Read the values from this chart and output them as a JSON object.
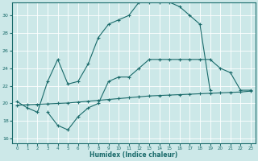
{
  "xlabel": "Humidex (Indice chaleur)",
  "bg_color": "#cce8e8",
  "line_color": "#1a6b6b",
  "grid_color": "#ffffff",
  "xlim": [
    -0.5,
    23.5
  ],
  "ylim": [
    15.5,
    31.5
  ],
  "xticks": [
    0,
    1,
    2,
    3,
    4,
    5,
    6,
    7,
    8,
    9,
    10,
    11,
    12,
    13,
    14,
    15,
    16,
    17,
    18,
    19,
    20,
    21,
    22,
    23
  ],
  "yticks": [
    16,
    18,
    20,
    22,
    24,
    26,
    28,
    30
  ],
  "line1_x": [
    0,
    1,
    2,
    3,
    4,
    5,
    6,
    7,
    8,
    9,
    10,
    11,
    12,
    13,
    14,
    15,
    16,
    17,
    18,
    19
  ],
  "line1_y": [
    20.2,
    19.5,
    19.0,
    22.5,
    25.0,
    22.2,
    22.5,
    24.5,
    27.5,
    29.0,
    29.5,
    30.0,
    31.5,
    31.5,
    31.5,
    31.5,
    31.0,
    30.0,
    29.0,
    21.5
  ],
  "line2_x": [
    3,
    4,
    5,
    6,
    7,
    8,
    9,
    10,
    11,
    12,
    13,
    14,
    15,
    16,
    17,
    18,
    19,
    20,
    21,
    22,
    23
  ],
  "line2_y": [
    19.0,
    17.5,
    17.0,
    18.5,
    19.5,
    20.0,
    22.5,
    23.0,
    23.0,
    24.0,
    25.0,
    25.0,
    25.0,
    25.0,
    25.0,
    25.0,
    25.0,
    24.0,
    23.5,
    21.5,
    21.5
  ],
  "line3_x": [
    0,
    1,
    2,
    3,
    4,
    5,
    6,
    7,
    8,
    9,
    10,
    11,
    12,
    13,
    14,
    15,
    16,
    17,
    18,
    19,
    20,
    21,
    22,
    23
  ],
  "line3_y": [
    19.8,
    19.85,
    19.9,
    19.95,
    20.0,
    20.05,
    20.15,
    20.25,
    20.35,
    20.45,
    20.55,
    20.65,
    20.75,
    20.85,
    20.9,
    20.95,
    21.0,
    21.05,
    21.1,
    21.15,
    21.2,
    21.25,
    21.3,
    21.4
  ],
  "marker": "+",
  "markersize": 3,
  "linewidth": 0.8
}
